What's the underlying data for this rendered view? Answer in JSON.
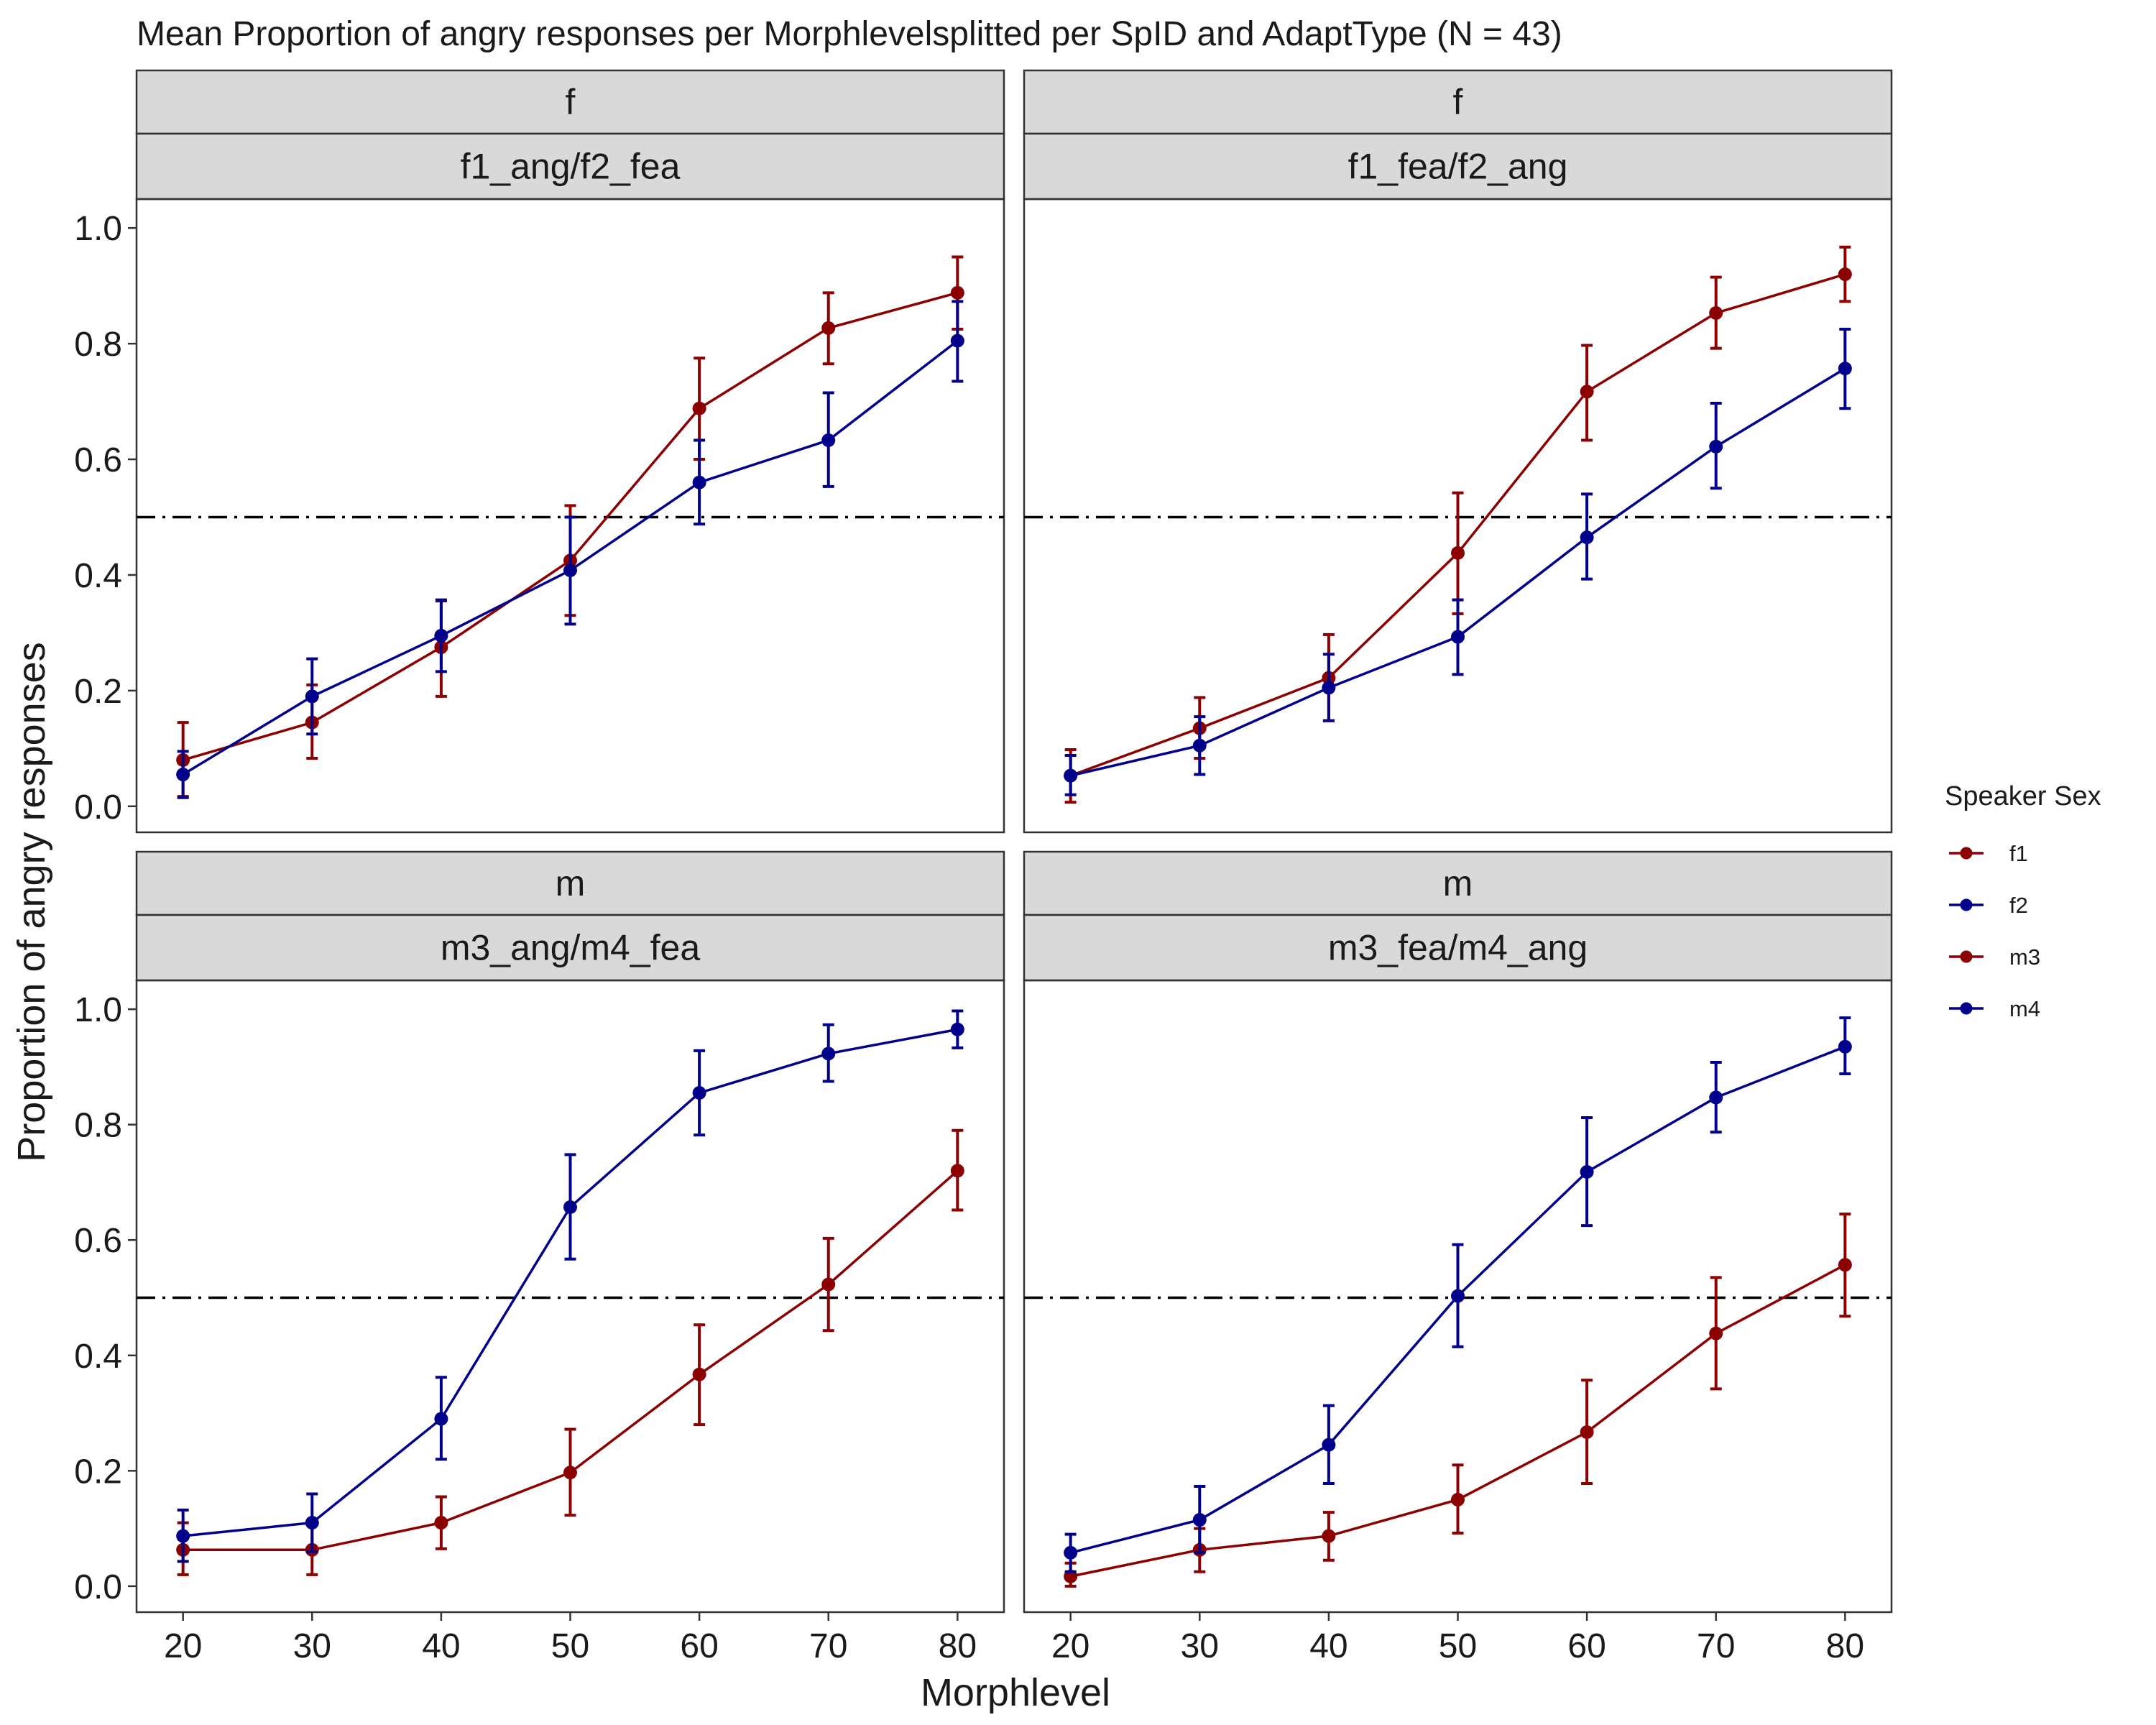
{
  "chart_data": {
    "type": "line",
    "title": "Mean Proportion of angry responses per Morphlevelsplitted per SpID and AdaptType (N = 43)",
    "xlabel": "Morphlevel",
    "ylabel": "Proportion of angry responses",
    "x": [
      20,
      30,
      40,
      50,
      60,
      70,
      80
    ],
    "ylim": [
      -0.045,
      1.05
    ],
    "yticks": [
      0.0,
      0.2,
      0.4,
      0.6,
      0.8,
      1.0
    ],
    "ytick_labels": [
      "0.0",
      "0.2",
      "0.4",
      "0.6",
      "0.8",
      "1.0"
    ],
    "reference_line": 0.5,
    "grid": false,
    "legend": {
      "title": "Speaker Sex",
      "position": "right",
      "entries": [
        {
          "label": "f1",
          "color": "#8b0000"
        },
        {
          "label": "f2",
          "color": "#00008b"
        },
        {
          "label": "m3",
          "color": "#8b0000"
        },
        {
          "label": "m4",
          "color": "#00008b"
        }
      ]
    },
    "panels": [
      {
        "strip_top": "f",
        "strip_bottom": "f1_ang/f2_fea",
        "series": [
          {
            "name": "f1",
            "color": "#8b0000",
            "values": [
              0.08,
              0.145,
              0.275,
              0.425,
              0.688,
              0.827,
              0.888
            ],
            "err_low": [
              0.017,
              0.083,
              0.19,
              0.33,
              0.6,
              0.765,
              0.825
            ],
            "err_high": [
              0.145,
              0.21,
              0.355,
              0.52,
              0.775,
              0.888,
              0.95
            ]
          },
          {
            "name": "f2",
            "color": "#00008b",
            "values": [
              0.055,
              0.19,
              0.295,
              0.408,
              0.56,
              0.633,
              0.805
            ],
            "err_low": [
              0.015,
              0.125,
              0.233,
              0.315,
              0.488,
              0.553,
              0.735
            ],
            "err_high": [
              0.095,
              0.255,
              0.357,
              0.5,
              0.633,
              0.715,
              0.873
            ]
          }
        ]
      },
      {
        "strip_top": "f",
        "strip_bottom": "f1_fea/f2_ang",
        "series": [
          {
            "name": "f1",
            "color": "#8b0000",
            "values": [
              0.053,
              0.135,
              0.222,
              0.438,
              0.717,
              0.853,
              0.92
            ],
            "err_low": [
              0.007,
              0.083,
              0.148,
              0.333,
              0.633,
              0.792,
              0.873
            ],
            "err_high": [
              0.098,
              0.188,
              0.297,
              0.542,
              0.797,
              0.915,
              0.967
            ]
          },
          {
            "name": "f2",
            "color": "#00008b",
            "values": [
              0.053,
              0.105,
              0.205,
              0.293,
              0.465,
              0.622,
              0.757
            ],
            "err_low": [
              0.02,
              0.055,
              0.148,
              0.228,
              0.393,
              0.55,
              0.688
            ],
            "err_high": [
              0.088,
              0.155,
              0.263,
              0.357,
              0.54,
              0.697,
              0.825
            ]
          }
        ]
      },
      {
        "strip_top": "m",
        "strip_bottom": "m3_ang/m4_fea",
        "series": [
          {
            "name": "m3",
            "color": "#8b0000",
            "values": [
              0.063,
              0.063,
              0.11,
              0.197,
              0.367,
              0.523,
              0.72
            ],
            "err_low": [
              0.02,
              0.02,
              0.065,
              0.123,
              0.28,
              0.443,
              0.652
            ],
            "err_high": [
              0.11,
              0.108,
              0.155,
              0.272,
              0.453,
              0.603,
              0.79
            ]
          },
          {
            "name": "m4",
            "color": "#00008b",
            "values": [
              0.087,
              0.11,
              0.29,
              0.657,
              0.855,
              0.923,
              0.965
            ],
            "err_low": [
              0.043,
              0.06,
              0.22,
              0.567,
              0.782,
              0.875,
              0.933
            ],
            "err_high": [
              0.132,
              0.16,
              0.362,
              0.748,
              0.928,
              0.973,
              0.997
            ]
          }
        ]
      },
      {
        "strip_top": "m",
        "strip_bottom": "m3_fea/m4_ang",
        "series": [
          {
            "name": "m3",
            "color": "#8b0000",
            "values": [
              0.017,
              0.063,
              0.087,
              0.15,
              0.267,
              0.438,
              0.557
            ],
            "err_low": [
              0.0,
              0.025,
              0.045,
              0.092,
              0.178,
              0.342,
              0.468
            ],
            "err_high": [
              0.04,
              0.1,
              0.128,
              0.21,
              0.357,
              0.535,
              0.645
            ]
          },
          {
            "name": "m4",
            "color": "#00008b",
            "values": [
              0.058,
              0.115,
              0.245,
              0.503,
              0.718,
              0.847,
              0.935
            ],
            "err_low": [
              0.025,
              0.058,
              0.178,
              0.415,
              0.625,
              0.787,
              0.888
            ],
            "err_high": [
              0.09,
              0.173,
              0.313,
              0.592,
              0.812,
              0.908,
              0.985
            ]
          }
        ]
      }
    ]
  }
}
